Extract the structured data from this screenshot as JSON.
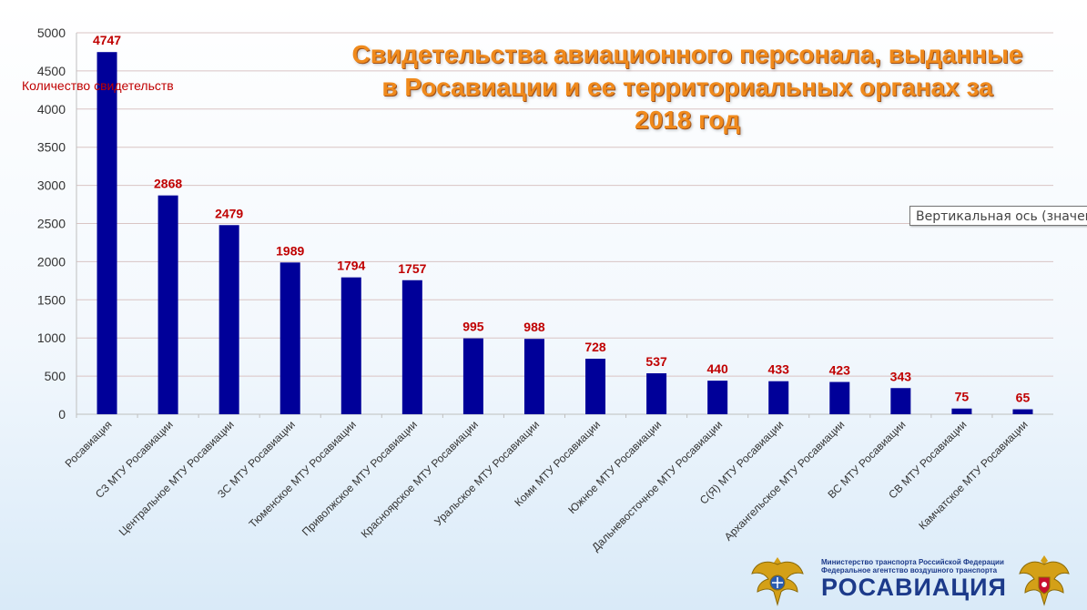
{
  "title_lines": [
    "Свидетельства авиационного персонала, выданные",
    "в Росавиации и ее территориальных органах за",
    "2018 год"
  ],
  "tooltip": "Вертикальная ось (значения)",
  "footer": {
    "ministry_line1": "Министерство транспорта Российской Федерации",
    "ministry_line2": "Федеральное агентство воздушного транспорта",
    "brand": "РОСАВИАЦИЯ"
  },
  "chart_data": {
    "type": "bar",
    "title": "Свидетельства авиационного персонала, выданные в Росавиации и ее территориальных органах за 2018 год",
    "ylabel": "Количество свидетельств",
    "xlabel": "",
    "ylim": [
      0,
      5000
    ],
    "yticks": [
      0,
      500,
      1000,
      1500,
      2000,
      2500,
      3000,
      3500,
      4000,
      4500,
      5000
    ],
    "grid": true,
    "bar_color": "#000099",
    "label_color": "#c00000",
    "categories": [
      "Росавиация",
      "СЗ МТУ Росавиации",
      "Центральное МТУ Росавиации",
      "ЗС МТУ Росавиации",
      "Тюменское МТУ Росавиации",
      "Приволжское МТУ Росавиации",
      "Красноярское МТУ Росавиации",
      "Уральское МТУ Росавиации",
      "Коми МТУ Росавиации",
      "Южное МТУ Росавиации",
      "Дальневосточное МТУ Росавиации",
      "С(Я) МТУ Росавиации",
      "Архангельское МТУ Росавиации",
      "ВС МТУ Росавиации",
      "СВ МТУ Росавиации",
      "Камчатское МТУ Росавиации"
    ],
    "values": [
      4747,
      2868,
      2479,
      1989,
      1794,
      1757,
      995,
      988,
      728,
      537,
      440,
      433,
      423,
      343,
      75,
      65
    ]
  }
}
